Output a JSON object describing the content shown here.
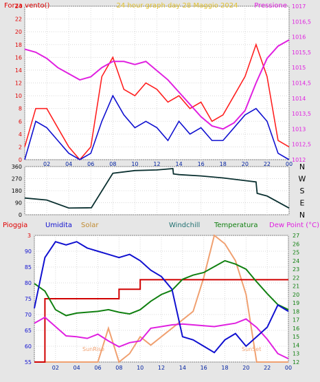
{
  "panel1": {
    "title": "24 hour graph day  28 Maggio 2024",
    "left_label": "Forza vento()",
    "right_label": "Pressione",
    "left_ticks": [
      "0",
      "2",
      "4",
      "6",
      "8",
      "10",
      "12",
      "14",
      "16",
      "18",
      "20",
      "22",
      "24"
    ],
    "right_ticks": [
      "1012",
      "1012,5",
      "1013",
      "1013,5",
      "1014",
      "1014,5",
      "1015",
      "1015,5",
      "1016",
      "1016,5",
      "1017"
    ],
    "x_ticks": [
      "02",
      "04",
      "06",
      "08",
      "10",
      "12",
      "14",
      "16",
      "18",
      "20",
      "22",
      "00"
    ]
  },
  "panel2": {
    "y_ticks": [
      "0",
      "90",
      "180",
      "270",
      "360"
    ],
    "dir_labels": [
      "N",
      "W",
      "S",
      "E",
      "N"
    ]
  },
  "panel3": {
    "labels": [
      "Pioggia",
      "Umidita",
      "Solar",
      "Windchill",
      "Temperatura",
      "Dew Point (°C)"
    ],
    "left_ticks": [
      "55",
      "60",
      "65",
      "70",
      "75",
      "80",
      "85",
      "90"
    ],
    "rain_top_tick": "3",
    "right_ticks": [
      "12",
      "13",
      "14",
      "15",
      "16",
      "17",
      "18",
      "19",
      "20",
      "21",
      "22",
      "23",
      "24",
      "25",
      "26",
      "27"
    ],
    "x_ticks": [
      "02",
      "04",
      "06",
      "08",
      "10",
      "12",
      "14",
      "16",
      "18",
      "20",
      "22",
      "00"
    ],
    "sunrise": "SunRise",
    "sunset": "SunSet"
  },
  "colors": {
    "wind_gust": "#ff2020",
    "wind_avg": "#1010d0",
    "pressure": "#e020e0",
    "direction": "#0a3030",
    "rain": "#d00000",
    "humidity": "#1010d0",
    "solar": "#f0a070",
    "windchill": "#207070",
    "temperature": "#108010",
    "dewpoint": "#e020e0",
    "title": "#e0c030"
  },
  "chart_data": [
    {
      "type": "line",
      "title": "24 hour graph day  28 Maggio 2024",
      "xlabel": "",
      "ylabel": "Forza vento()",
      "y2label": "Pressione",
      "ylim": [
        0,
        24
      ],
      "y2lim": [
        1012,
        1017
      ],
      "x": [
        0,
        1,
        2,
        3,
        4,
        5,
        6,
        7,
        8,
        9,
        10,
        11,
        12,
        13,
        14,
        15,
        16,
        17,
        18,
        19,
        20,
        21,
        22,
        23,
        24
      ],
      "series": [
        {
          "values": [
            2,
            8,
            8,
            5,
            2,
            0,
            2,
            13,
            16,
            11,
            10,
            12,
            11,
            9,
            10,
            8,
            9,
            6,
            7,
            10,
            13,
            18,
            13,
            3,
            2
          ]
        },
        {
          "values": [
            0,
            6,
            5,
            3,
            1,
            0,
            1,
            6,
            10,
            7,
            5,
            6,
            5,
            3,
            6,
            4,
            5,
            3,
            3,
            5,
            7,
            8,
            6,
            1,
            0
          ]
        },
        {
          "axis": "right",
          "values": [
            1015.6,
            1015.5,
            1015.3,
            1015.0,
            1014.8,
            1014.6,
            1014.7,
            1015.0,
            1015.2,
            1015.2,
            1015.1,
            1015.2,
            1014.9,
            1014.6,
            1014.2,
            1013.8,
            1013.4,
            1013.1,
            1013.0,
            1013.2,
            1013.6,
            1014.5,
            1015.3,
            1015.7,
            1015.9
          ]
        }
      ]
    },
    {
      "type": "line",
      "ylim": [
        0,
        360
      ],
      "yticks": [
        0,
        90,
        180,
        270,
        360
      ],
      "x": [
        0,
        2,
        4,
        6,
        6.05,
        8,
        10,
        12,
        13.45,
        13.5,
        14,
        16,
        18,
        20,
        21,
        21.1,
        22,
        24
      ],
      "series": [
        {
          "values": [
            125,
            110,
            50,
            52,
            52,
            310,
            330,
            335,
            345,
            305,
            300,
            290,
            275,
            255,
            245,
            160,
            140,
            50
          ]
        }
      ]
    },
    {
      "type": "line",
      "ylim": [
        55,
        95
      ],
      "y2lim": [
        12,
        27
      ],
      "x": [
        0,
        1,
        2,
        3,
        4,
        5,
        6,
        7,
        8,
        9,
        10,
        11,
        12,
        13,
        14,
        15,
        16,
        17,
        18,
        19,
        20,
        21,
        22,
        23,
        24
      ],
      "series": [
        {
          "name": "Umidita",
          "values": [
            72,
            88,
            93,
            92,
            93,
            91,
            90,
            89,
            88,
            89,
            87,
            84,
            82,
            78,
            63,
            62,
            60,
            58,
            62,
            64,
            60,
            63,
            66,
            73,
            71
          ]
        },
        {
          "name": "Temperatura",
          "axis": "right",
          "values": [
            21.3,
            20.4,
            18.2,
            17.5,
            17.8,
            17.9,
            18.0,
            18.2,
            17.9,
            17.7,
            18.2,
            19.2,
            20.0,
            20.5,
            21.8,
            22.3,
            22.6,
            23.3,
            24.0,
            23.6,
            23.0,
            21.5,
            20.1,
            18.8,
            18.2
          ]
        },
        {
          "name": "Dew Point (°C)",
          "axis": "right",
          "values": [
            16.6,
            17.3,
            16.2,
            15.1,
            15.0,
            14.8,
            15.3,
            14.5,
            13.8,
            14.3,
            14.5,
            16.0,
            16.2,
            16.4,
            16.5,
            16.4,
            16.3,
            16.2,
            16.4,
            16.6,
            17.1,
            16.1,
            14.7,
            13.0,
            12.4
          ]
        },
        {
          "name": "Solar",
          "axis": "right",
          "values": [
            12,
            12,
            12,
            12,
            12,
            12,
            12,
            16,
            12,
            13,
            15,
            14,
            15,
            16,
            17,
            18,
            22,
            27,
            26,
            24,
            20,
            12,
            12,
            12,
            12
          ]
        },
        {
          "name": "Pioggia",
          "values": [
            55,
            75,
            75,
            75,
            75,
            75,
            75,
            75,
            78,
            78,
            81,
            81,
            81,
            81,
            81,
            81,
            81,
            81,
            81,
            81,
            81,
            81,
            81,
            81,
            81
          ]
        }
      ]
    }
  ]
}
